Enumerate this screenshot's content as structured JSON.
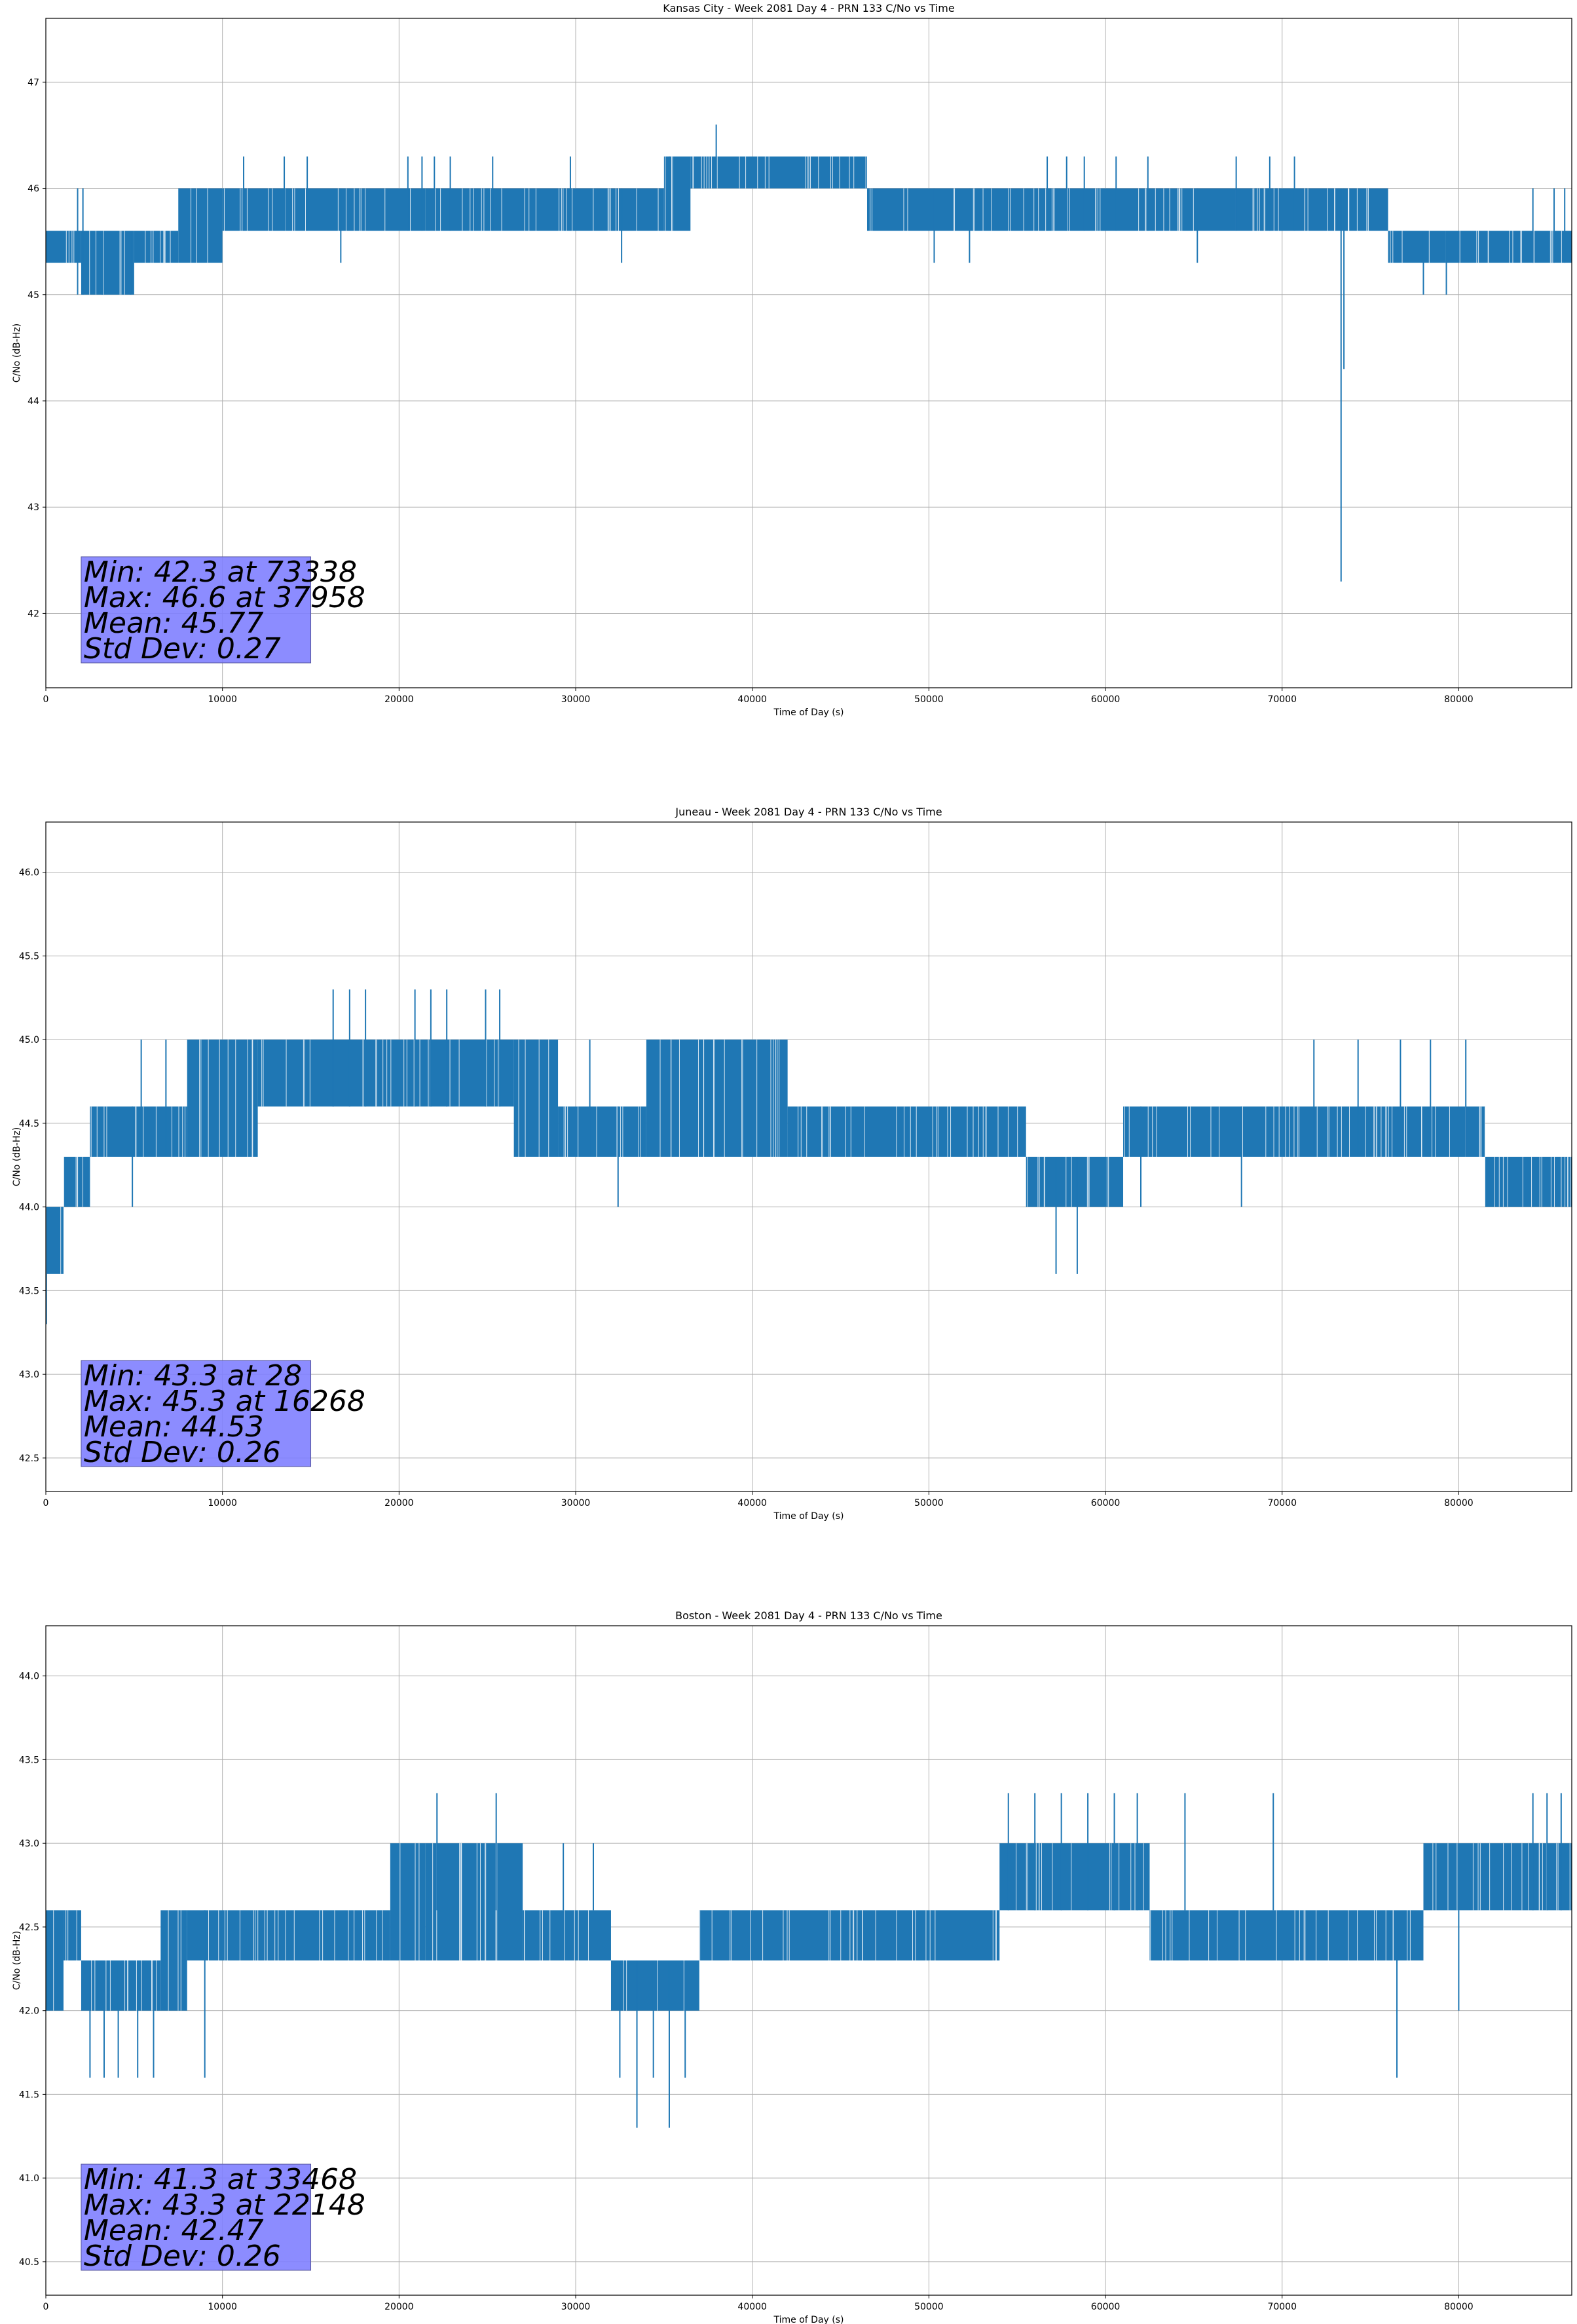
{
  "chart_data": [
    {
      "type": "line",
      "title": "Kansas City - Week 2081 Day 4 - PRN 133 C/No vs Time",
      "xlabel": "Time of Day (s)",
      "ylabel": "C/No (dB-Hz)",
      "xlim": [
        0,
        86400
      ],
      "ylim": [
        41.3,
        47.6
      ],
      "xticks": [
        0,
        10000,
        20000,
        30000,
        40000,
        50000,
        60000,
        70000,
        80000
      ],
      "yticks": [
        42,
        43,
        44,
        45,
        46,
        47
      ],
      "ytick_labels": [
        "42",
        "43",
        "44",
        "45",
        "46",
        "47"
      ],
      "grid": true,
      "color": "#1f77b4",
      "stats": [
        "Min: 42.3 at 73338",
        "Max: 46.6 at 37958",
        "Mean: 45.77",
        "Std Dev: 0.27"
      ],
      "segments": [
        {
          "x0": 0,
          "x1": 2000,
          "lo": 45.3,
          "hi": 45.6
        },
        {
          "x0": 2000,
          "x1": 5000,
          "lo": 45.0,
          "hi": 45.6
        },
        {
          "x0": 5000,
          "x1": 7500,
          "lo": 45.3,
          "hi": 45.6
        },
        {
          "x0": 7500,
          "x1": 10000,
          "lo": 45.3,
          "hi": 46.0
        },
        {
          "x0": 10000,
          "x1": 21500,
          "lo": 45.6,
          "hi": 46.0
        },
        {
          "x0": 21500,
          "x1": 35000,
          "lo": 45.6,
          "hi": 46.0
        },
        {
          "x0": 35000,
          "x1": 36500,
          "lo": 45.6,
          "hi": 46.3
        },
        {
          "x0": 36500,
          "x1": 46500,
          "lo": 46.0,
          "hi": 46.3
        },
        {
          "x0": 46500,
          "x1": 76000,
          "lo": 45.6,
          "hi": 46.0
        },
        {
          "x0": 76000,
          "x1": 86400,
          "lo": 45.3,
          "hi": 45.6
        }
      ],
      "spikes": [
        {
          "x": 1800,
          "lo": 45.0,
          "hi": 46.0
        },
        {
          "x": 2100,
          "lo": 45.0,
          "hi": 46.0
        },
        {
          "x": 3200,
          "lo": 45.0,
          "hi": 45.6
        },
        {
          "x": 4800,
          "lo": 45.0,
          "hi": 45.6
        },
        {
          "x": 11200,
          "lo": 45.6,
          "hi": 46.3
        },
        {
          "x": 13500,
          "lo": 45.6,
          "hi": 46.3
        },
        {
          "x": 14800,
          "lo": 45.6,
          "hi": 46.3
        },
        {
          "x": 16700,
          "lo": 45.3,
          "hi": 46.0
        },
        {
          "x": 20500,
          "lo": 45.6,
          "hi": 46.3
        },
        {
          "x": 21300,
          "lo": 45.6,
          "hi": 46.3
        },
        {
          "x": 22000,
          "lo": 45.6,
          "hi": 46.3
        },
        {
          "x": 22900,
          "lo": 45.6,
          "hi": 46.3
        },
        {
          "x": 25300,
          "lo": 45.6,
          "hi": 46.3
        },
        {
          "x": 29700,
          "lo": 45.6,
          "hi": 46.3
        },
        {
          "x": 32600,
          "lo": 45.3,
          "hi": 46.0
        },
        {
          "x": 35300,
          "lo": 45.6,
          "hi": 46.3
        },
        {
          "x": 37958,
          "lo": 46.0,
          "hi": 46.6
        },
        {
          "x": 50300,
          "lo": 45.3,
          "hi": 46.0
        },
        {
          "x": 52300,
          "lo": 45.3,
          "hi": 46.0
        },
        {
          "x": 56700,
          "lo": 45.6,
          "hi": 46.3
        },
        {
          "x": 57800,
          "lo": 45.6,
          "hi": 46.3
        },
        {
          "x": 58800,
          "lo": 45.6,
          "hi": 46.3
        },
        {
          "x": 60600,
          "lo": 45.6,
          "hi": 46.3
        },
        {
          "x": 62400,
          "lo": 45.6,
          "hi": 46.3
        },
        {
          "x": 65200,
          "lo": 45.3,
          "hi": 46.0
        },
        {
          "x": 67400,
          "lo": 45.6,
          "hi": 46.3
        },
        {
          "x": 69300,
          "lo": 45.6,
          "hi": 46.3
        },
        {
          "x": 70700,
          "lo": 45.6,
          "hi": 46.3
        },
        {
          "x": 73338,
          "lo": 42.3,
          "hi": 46.0
        },
        {
          "x": 73500,
          "lo": 44.3,
          "hi": 46.0
        },
        {
          "x": 78000,
          "lo": 45.0,
          "hi": 45.6
        },
        {
          "x": 79300,
          "lo": 45.0,
          "hi": 45.6
        },
        {
          "x": 84200,
          "lo": 45.3,
          "hi": 46.0
        },
        {
          "x": 85400,
          "lo": 45.3,
          "hi": 46.0
        },
        {
          "x": 86000,
          "lo": 45.3,
          "hi": 46.0
        }
      ]
    },
    {
      "type": "line",
      "title": "Juneau - Week 2081 Day 4 - PRN 133 C/No vs Time",
      "xlabel": "Time of Day (s)",
      "ylabel": "C/No (dB-Hz)",
      "xlim": [
        0,
        86400
      ],
      "ylim": [
        42.3,
        46.3
      ],
      "xticks": [
        0,
        10000,
        20000,
        30000,
        40000,
        50000,
        60000,
        70000,
        80000
      ],
      "yticks": [
        42.5,
        43.0,
        43.5,
        44.0,
        44.5,
        45.0,
        45.5,
        46.0
      ],
      "ytick_labels": [
        "42.5",
        "43.0",
        "43.5",
        "44.0",
        "44.5",
        "45.0",
        "45.5",
        "46.0"
      ],
      "grid": true,
      "color": "#1f77b4",
      "stats": [
        "Min: 43.3 at 28",
        "Max: 45.3 at 16268",
        "Mean: 44.53",
        "Std Dev: 0.26"
      ],
      "segments": [
        {
          "x0": 0,
          "x1": 1000,
          "lo": 43.6,
          "hi": 44.0
        },
        {
          "x0": 1000,
          "x1": 2500,
          "lo": 44.0,
          "hi": 44.3
        },
        {
          "x0": 2500,
          "x1": 8000,
          "lo": 44.3,
          "hi": 44.6
        },
        {
          "x0": 8000,
          "x1": 12000,
          "lo": 44.3,
          "hi": 45.0
        },
        {
          "x0": 12000,
          "x1": 26500,
          "lo": 44.6,
          "hi": 45.0
        },
        {
          "x0": 26500,
          "x1": 29000,
          "lo": 44.3,
          "hi": 45.0
        },
        {
          "x0": 29000,
          "x1": 34000,
          "lo": 44.3,
          "hi": 44.6
        },
        {
          "x0": 34000,
          "x1": 42000,
          "lo": 44.3,
          "hi": 45.0
        },
        {
          "x0": 42000,
          "x1": 55500,
          "lo": 44.3,
          "hi": 44.6
        },
        {
          "x0": 55500,
          "x1": 61000,
          "lo": 44.0,
          "hi": 44.3
        },
        {
          "x0": 61000,
          "x1": 81500,
          "lo": 44.3,
          "hi": 44.6
        },
        {
          "x0": 81500,
          "x1": 86400,
          "lo": 44.0,
          "hi": 44.3
        }
      ],
      "spikes": [
        {
          "x": 28,
          "lo": 43.3,
          "hi": 44.0
        },
        {
          "x": 4900,
          "lo": 44.0,
          "hi": 44.6
        },
        {
          "x": 5400,
          "lo": 44.3,
          "hi": 45.0
        },
        {
          "x": 6800,
          "lo": 44.3,
          "hi": 45.0
        },
        {
          "x": 16268,
          "lo": 44.6,
          "hi": 45.3
        },
        {
          "x": 17200,
          "lo": 44.6,
          "hi": 45.3
        },
        {
          "x": 18100,
          "lo": 44.6,
          "hi": 45.3
        },
        {
          "x": 20900,
          "lo": 44.6,
          "hi": 45.3
        },
        {
          "x": 21800,
          "lo": 44.6,
          "hi": 45.3
        },
        {
          "x": 22700,
          "lo": 44.6,
          "hi": 45.3
        },
        {
          "x": 24900,
          "lo": 44.6,
          "hi": 45.3
        },
        {
          "x": 25700,
          "lo": 44.6,
          "hi": 45.3
        },
        {
          "x": 26600,
          "lo": 44.3,
          "hi": 44.6
        },
        {
          "x": 30800,
          "lo": 44.3,
          "hi": 45.0
        },
        {
          "x": 32400,
          "lo": 44.0,
          "hi": 44.6
        },
        {
          "x": 57200,
          "lo": 43.6,
          "hi": 44.3
        },
        {
          "x": 58400,
          "lo": 43.6,
          "hi": 44.3
        },
        {
          "x": 62000,
          "lo": 44.0,
          "hi": 44.6
        },
        {
          "x": 67700,
          "lo": 44.0,
          "hi": 44.6
        },
        {
          "x": 71800,
          "lo": 44.3,
          "hi": 45.0
        },
        {
          "x": 74300,
          "lo": 44.3,
          "hi": 45.0
        },
        {
          "x": 76700,
          "lo": 44.3,
          "hi": 45.0
        },
        {
          "x": 78400,
          "lo": 44.3,
          "hi": 45.0
        },
        {
          "x": 80400,
          "lo": 44.3,
          "hi": 45.0
        }
      ]
    },
    {
      "type": "line",
      "title": "Boston - Week 2081 Day 4 - PRN 133 C/No vs Time",
      "xlabel": "Time of Day (s)",
      "ylabel": "C/No (dB-Hz)",
      "xlim": [
        0,
        86400
      ],
      "ylim": [
        40.3,
        44.3
      ],
      "xticks": [
        0,
        10000,
        20000,
        30000,
        40000,
        50000,
        60000,
        70000,
        80000
      ],
      "yticks": [
        40.5,
        41.0,
        41.5,
        42.0,
        42.5,
        43.0,
        43.5,
        44.0
      ],
      "ytick_labels": [
        "40.5",
        "41.0",
        "41.5",
        "42.0",
        "42.5",
        "43.0",
        "43.5",
        "44.0"
      ],
      "grid": true,
      "color": "#1f77b4",
      "stats": [
        "Min: 41.3 at 33468",
        "Max: 43.3 at 22148",
        "Mean: 42.47",
        "Std Dev: 0.26"
      ],
      "segments": [
        {
          "x0": 0,
          "x1": 1000,
          "lo": 42.0,
          "hi": 42.6
        },
        {
          "x0": 1000,
          "x1": 2000,
          "lo": 42.3,
          "hi": 42.6
        },
        {
          "x0": 2000,
          "x1": 6500,
          "lo": 42.0,
          "hi": 42.3
        },
        {
          "x0": 6500,
          "x1": 8000,
          "lo": 42.0,
          "hi": 42.6
        },
        {
          "x0": 8000,
          "x1": 19500,
          "lo": 42.3,
          "hi": 42.6
        },
        {
          "x0": 19500,
          "x1": 21500,
          "lo": 42.3,
          "hi": 43.0
        },
        {
          "x0": 21500,
          "x1": 27000,
          "lo": 42.3,
          "hi": 43.0
        },
        {
          "x0": 27000,
          "x1": 32000,
          "lo": 42.3,
          "hi": 42.6
        },
        {
          "x0": 32000,
          "x1": 37000,
          "lo": 42.0,
          "hi": 42.3
        },
        {
          "x0": 37000,
          "x1": 54000,
          "lo": 42.3,
          "hi": 42.6
        },
        {
          "x0": 54000,
          "x1": 62500,
          "lo": 42.6,
          "hi": 43.0
        },
        {
          "x0": 62500,
          "x1": 78000,
          "lo": 42.3,
          "hi": 42.6
        },
        {
          "x0": 78000,
          "x1": 86400,
          "lo": 42.6,
          "hi": 43.0
        }
      ],
      "spikes": [
        {
          "x": 2500,
          "lo": 41.6,
          "hi": 42.3
        },
        {
          "x": 3300,
          "lo": 41.6,
          "hi": 42.3
        },
        {
          "x": 4100,
          "lo": 41.6,
          "hi": 42.3
        },
        {
          "x": 5200,
          "lo": 41.6,
          "hi": 42.3
        },
        {
          "x": 6100,
          "lo": 41.6,
          "hi": 42.3
        },
        {
          "x": 9000,
          "lo": 41.6,
          "hi": 42.6
        },
        {
          "x": 22148,
          "lo": 42.6,
          "hi": 43.3
        },
        {
          "x": 25500,
          "lo": 42.6,
          "hi": 43.3
        },
        {
          "x": 29300,
          "lo": 42.6,
          "hi": 43.0
        },
        {
          "x": 31000,
          "lo": 42.6,
          "hi": 43.0
        },
        {
          "x": 32500,
          "lo": 41.6,
          "hi": 42.3
        },
        {
          "x": 33468,
          "lo": 41.3,
          "hi": 42.3
        },
        {
          "x": 34400,
          "lo": 41.6,
          "hi": 42.3
        },
        {
          "x": 35300,
          "lo": 41.3,
          "hi": 42.3
        },
        {
          "x": 36200,
          "lo": 41.6,
          "hi": 42.3
        },
        {
          "x": 54500,
          "lo": 42.6,
          "hi": 43.3
        },
        {
          "x": 56000,
          "lo": 42.6,
          "hi": 43.3
        },
        {
          "x": 57500,
          "lo": 42.6,
          "hi": 43.3
        },
        {
          "x": 59000,
          "lo": 42.6,
          "hi": 43.3
        },
        {
          "x": 60500,
          "lo": 42.6,
          "hi": 43.3
        },
        {
          "x": 61800,
          "lo": 42.6,
          "hi": 43.3
        },
        {
          "x": 64500,
          "lo": 42.6,
          "hi": 43.3
        },
        {
          "x": 69500,
          "lo": 42.6,
          "hi": 43.3
        },
        {
          "x": 76500,
          "lo": 41.6,
          "hi": 42.3
        },
        {
          "x": 80000,
          "lo": 42.0,
          "hi": 42.6
        },
        {
          "x": 84200,
          "lo": 42.6,
          "hi": 43.3
        },
        {
          "x": 85000,
          "lo": 42.6,
          "hi": 43.3
        },
        {
          "x": 85800,
          "lo": 42.6,
          "hi": 43.3
        }
      ]
    }
  ]
}
